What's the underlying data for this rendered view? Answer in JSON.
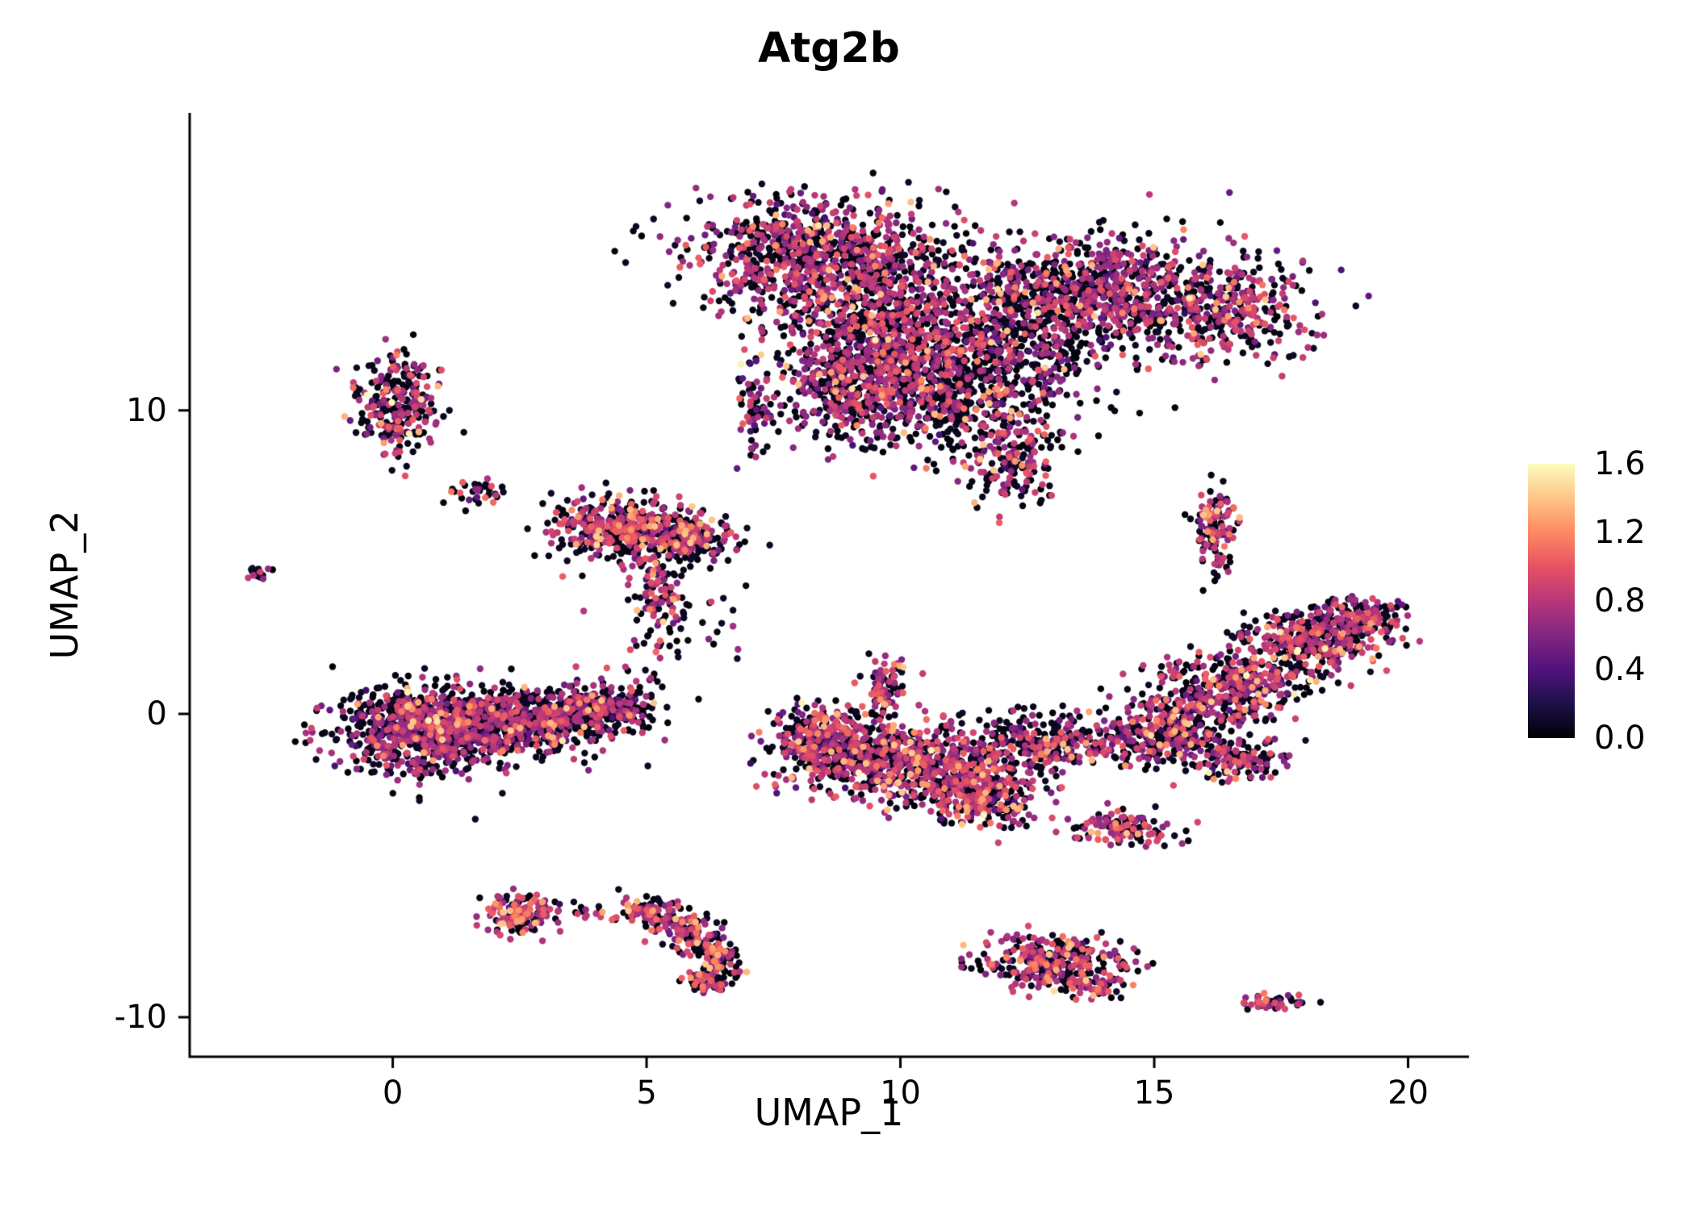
{
  "title": "Atg2b",
  "chart_data": {
    "type": "scatter",
    "title": "Atg2b",
    "xlabel": "UMAP_1",
    "ylabel": "UMAP_2",
    "xlim": [
      -4.0,
      21.2
    ],
    "ylim": [
      -11.3,
      19.8
    ],
    "x_ticks": [
      "0",
      "5",
      "10",
      "15",
      "20"
    ],
    "x_tick_values": [
      0,
      5,
      10,
      15,
      20
    ],
    "y_ticks": [
      "-10",
      "0",
      "10"
    ],
    "y_tick_values": [
      -10,
      0,
      10
    ],
    "grid": false,
    "legend_position": "right",
    "point_radius_px": 4.2,
    "seed": 42,
    "colorbar": {
      "vmin": 0.0,
      "vmax": 1.6,
      "tick_labels": [
        "1.6",
        "1.2",
        "0.8",
        "0.4",
        "0.0"
      ],
      "tick_values": [
        1.6,
        1.2,
        0.8,
        0.4,
        0.0
      ],
      "stops": [
        {
          "v": 0.0,
          "color": "#000004"
        },
        {
          "v": 0.2,
          "color": "#1d1147"
        },
        {
          "v": 0.4,
          "color": "#51127c"
        },
        {
          "v": 0.6,
          "color": "#822681"
        },
        {
          "v": 0.8,
          "color": "#b73779"
        },
        {
          "v": 1.0,
          "color": "#e75263"
        },
        {
          "v": 1.2,
          "color": "#fc8961"
        },
        {
          "v": 1.4,
          "color": "#fec488"
        },
        {
          "v": 1.6,
          "color": "#fcfdbf"
        }
      ]
    },
    "clusters": [
      {
        "name": "top-left-lobe",
        "cx": 8.3,
        "cy": 15.2,
        "sx": 1.25,
        "sy": 0.95,
        "n": 850,
        "zf": 0.5,
        "mid": 0.72,
        "hot": 0.04
      },
      {
        "name": "top-left-lower",
        "cx": 9.6,
        "cy": 12.6,
        "sx": 1.05,
        "sy": 1.15,
        "n": 850,
        "zf": 0.48,
        "mid": 0.75,
        "hot": 0.04
      },
      {
        "name": "top-right-lobe",
        "cx": 13.8,
        "cy": 13.9,
        "sx": 1.55,
        "sy": 0.95,
        "n": 950,
        "zf": 0.5,
        "mid": 0.72,
        "hot": 0.04
      },
      {
        "name": "top-right-edge",
        "cx": 16.4,
        "cy": 13.2,
        "sx": 0.8,
        "sy": 0.75,
        "n": 280,
        "zf": 0.5,
        "mid": 0.75,
        "hot": 0.05
      },
      {
        "name": "top-bridge",
        "cx": 12.2,
        "cy": 11.9,
        "sx": 1.1,
        "sy": 1.0,
        "n": 380,
        "zf": 0.62,
        "mid": 0.68,
        "hot": 0.03
      },
      {
        "name": "top-lower-mid",
        "cx": 11.2,
        "cy": 10.3,
        "sx": 0.95,
        "sy": 1.1,
        "n": 420,
        "zf": 0.6,
        "mid": 0.7,
        "hot": 0.04
      },
      {
        "name": "top-lower-left",
        "cx": 9.0,
        "cy": 10.5,
        "sx": 0.75,
        "sy": 0.8,
        "n": 330,
        "zf": 0.52,
        "mid": 0.72,
        "hot": 0.04
      },
      {
        "name": "top-spike",
        "cx": 12.2,
        "cy": 8.3,
        "sx": 0.45,
        "sy": 0.75,
        "n": 150,
        "zf": 0.45,
        "mid": 0.78,
        "hot": 0.07
      },
      {
        "name": "top-left-tail",
        "cx": 7.15,
        "cy": 9.9,
        "sx": 0.22,
        "sy": 0.65,
        "n": 60,
        "zf": 0.55,
        "mid": 0.7,
        "hot": 0.03
      },
      {
        "name": "left-small",
        "cx": 0.1,
        "cy": 10.3,
        "sx": 0.42,
        "sy": 0.9,
        "n": 270,
        "zf": 0.5,
        "mid": 0.72,
        "hot": 0.05
      },
      {
        "name": "tiny-sparse",
        "cx": 1.7,
        "cy": 7.3,
        "sx": 0.33,
        "sy": 0.22,
        "n": 35,
        "zf": 0.55,
        "mid": 0.8,
        "hot": 0.1
      },
      {
        "name": "far-left-dot",
        "cx": -2.7,
        "cy": 4.6,
        "sx": 0.1,
        "sy": 0.13,
        "n": 14,
        "zf": 0.5,
        "mid": 0.7,
        "hot": 0.05
      },
      {
        "name": "midleft-main",
        "cx": 4.6,
        "cy": 6.1,
        "sx": 0.75,
        "sy": 0.5,
        "n": 430,
        "zf": 0.45,
        "mid": 0.78,
        "hot": 0.08
      },
      {
        "name": "midleft-right",
        "cx": 5.9,
        "cy": 5.75,
        "sx": 0.45,
        "sy": 0.4,
        "n": 170,
        "zf": 0.45,
        "mid": 0.78,
        "hot": 0.08
      },
      {
        "name": "midleft-tail",
        "cx": 5.3,
        "cy": 4.0,
        "sx": 0.3,
        "sy": 0.75,
        "n": 110,
        "zf": 0.5,
        "mid": 0.75,
        "hot": 0.08
      },
      {
        "name": "midleft-sparse",
        "cx": 5.0,
        "cy": 1.8,
        "sx": 0.35,
        "sy": 0.55,
        "n": 22,
        "zf": 0.55,
        "mid": 0.75,
        "hot": 0.05
      },
      {
        "name": "sparse-mid",
        "cx": 6.0,
        "cy": 3.2,
        "sx": 0.9,
        "sy": 1.0,
        "n": 20,
        "zf": 0.6,
        "mid": 0.7,
        "hot": 0.05
      },
      {
        "name": "bigleft-a",
        "cx": 0.6,
        "cy": -0.5,
        "sx": 0.85,
        "sy": 0.7,
        "n": 850,
        "zf": 0.55,
        "mid": 0.7,
        "hot": 0.04
      },
      {
        "name": "bigleft-b",
        "cx": 2.4,
        "cy": -0.3,
        "sx": 0.95,
        "sy": 0.55,
        "n": 650,
        "zf": 0.55,
        "mid": 0.7,
        "hot": 0.04
      },
      {
        "name": "bigleft-tip",
        "cx": 4.1,
        "cy": 0.2,
        "sx": 0.55,
        "sy": 0.38,
        "n": 280,
        "zf": 0.55,
        "mid": 0.7,
        "hot": 0.04
      },
      {
        "name": "center-arm",
        "cx": 9.65,
        "cy": 1.0,
        "sx": 0.22,
        "sy": 0.55,
        "n": 85,
        "zf": 0.45,
        "mid": 0.8,
        "hot": 0.08
      },
      {
        "name": "center-a",
        "cx": 9.0,
        "cy": -1.3,
        "sx": 0.75,
        "sy": 0.6,
        "n": 420,
        "zf": 0.45,
        "mid": 0.75,
        "hot": 0.06
      },
      {
        "name": "center-b",
        "cx": 10.5,
        "cy": -1.8,
        "sx": 0.75,
        "sy": 0.65,
        "n": 420,
        "zf": 0.45,
        "mid": 0.75,
        "hot": 0.06
      },
      {
        "name": "center-c",
        "cx": 11.7,
        "cy": -2.7,
        "sx": 0.55,
        "sy": 0.55,
        "n": 280,
        "zf": 0.42,
        "mid": 0.78,
        "hot": 0.08
      },
      {
        "name": "center-d",
        "cx": 12.8,
        "cy": -0.9,
        "sx": 0.85,
        "sy": 0.5,
        "n": 320,
        "zf": 0.58,
        "mid": 0.72,
        "hot": 0.04
      },
      {
        "name": "center-e",
        "cx": 8.3,
        "cy": -0.5,
        "sx": 0.4,
        "sy": 0.45,
        "n": 140,
        "zf": 0.48,
        "mid": 0.75,
        "hot": 0.06
      },
      {
        "name": "right-band-a",
        "cx": 15.3,
        "cy": -0.6,
        "sx": 0.65,
        "sy": 0.55,
        "n": 330,
        "zf": 0.5,
        "mid": 0.75,
        "hot": 0.05
      },
      {
        "name": "right-band-b",
        "cx": 16.6,
        "cy": 0.9,
        "sx": 0.75,
        "sy": 0.55,
        "n": 380,
        "zf": 0.5,
        "mid": 0.75,
        "hot": 0.05
      },
      {
        "name": "right-band-c",
        "cx": 18.2,
        "cy": 2.5,
        "sx": 0.75,
        "sy": 0.5,
        "n": 380,
        "zf": 0.48,
        "mid": 0.75,
        "hot": 0.05
      },
      {
        "name": "right-band-tip",
        "cx": 19.2,
        "cy": 3.2,
        "sx": 0.35,
        "sy": 0.28,
        "n": 110,
        "zf": 0.48,
        "mid": 0.75,
        "hot": 0.05
      },
      {
        "name": "right-hook",
        "cx": 16.6,
        "cy": -1.5,
        "sx": 0.45,
        "sy": 0.38,
        "n": 140,
        "zf": 0.5,
        "mid": 0.75,
        "hot": 0.05
      },
      {
        "name": "right-vert",
        "cx": 16.2,
        "cy": 6.0,
        "sx": 0.22,
        "sy": 0.75,
        "n": 125,
        "zf": 0.4,
        "mid": 0.8,
        "hot": 0.08
      },
      {
        "name": "small-elong",
        "cx": 14.4,
        "cy": -3.8,
        "sx": 0.5,
        "sy": 0.3,
        "n": 125,
        "zf": 0.45,
        "mid": 0.78,
        "hot": 0.06
      },
      {
        "name": "botleft-blob",
        "cx": 2.5,
        "cy": -6.6,
        "sx": 0.38,
        "sy": 0.33,
        "n": 145,
        "zf": 0.4,
        "mid": 0.8,
        "hot": 0.1
      },
      {
        "name": "botleft-dots",
        "cx": 3.9,
        "cy": -6.6,
        "sx": 0.3,
        "sy": 0.18,
        "n": 14,
        "zf": 0.55,
        "mid": 0.7,
        "hot": 0.05
      },
      {
        "name": "arc-1",
        "cx": 5.0,
        "cy": -6.5,
        "sx": 0.33,
        "sy": 0.24,
        "n": 75,
        "zf": 0.42,
        "mid": 0.8,
        "hot": 0.1
      },
      {
        "name": "arc-2",
        "cx": 5.6,
        "cy": -6.9,
        "sx": 0.28,
        "sy": 0.24,
        "n": 65,
        "zf": 0.42,
        "mid": 0.8,
        "hot": 0.1
      },
      {
        "name": "arc-3",
        "cx": 6.1,
        "cy": -7.5,
        "sx": 0.24,
        "sy": 0.3,
        "n": 65,
        "zf": 0.42,
        "mid": 0.8,
        "hot": 0.1
      },
      {
        "name": "arc-4",
        "cx": 6.4,
        "cy": -8.2,
        "sx": 0.2,
        "sy": 0.33,
        "n": 75,
        "zf": 0.42,
        "mid": 0.8,
        "hot": 0.1
      },
      {
        "name": "arc-5",
        "cx": 6.2,
        "cy": -8.8,
        "sx": 0.25,
        "sy": 0.18,
        "n": 55,
        "zf": 0.42,
        "mid": 0.8,
        "hot": 0.1
      },
      {
        "name": "botcenter",
        "cx": 13.0,
        "cy": -8.2,
        "sx": 0.7,
        "sy": 0.45,
        "n": 320,
        "zf": 0.42,
        "mid": 0.78,
        "hot": 0.08
      },
      {
        "name": "botcenter-tail",
        "cx": 13.9,
        "cy": -9.0,
        "sx": 0.28,
        "sy": 0.22,
        "n": 55,
        "zf": 0.42,
        "mid": 0.78,
        "hot": 0.08
      },
      {
        "name": "tiny-botright",
        "cx": 17.4,
        "cy": -9.5,
        "sx": 0.28,
        "sy": 0.14,
        "n": 45,
        "zf": 0.45,
        "mid": 0.78,
        "hot": 0.08
      }
    ]
  }
}
